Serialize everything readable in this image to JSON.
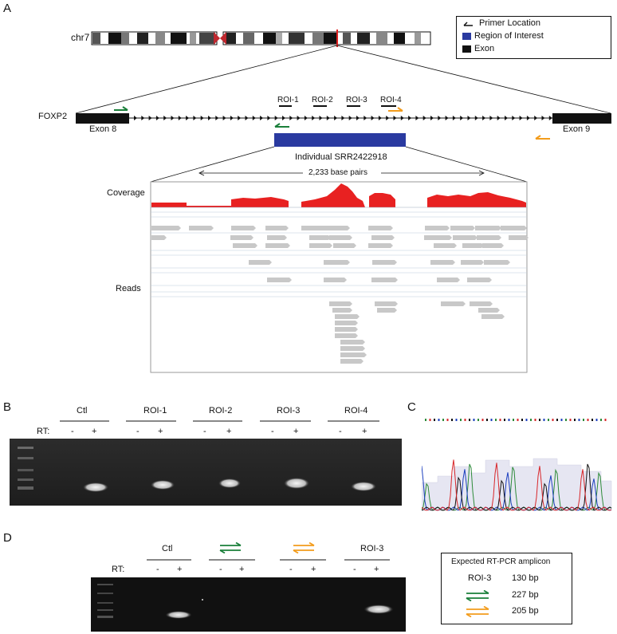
{
  "panels": {
    "a": "A",
    "b": "B",
    "c": "C",
    "d": "D"
  },
  "panel_a": {
    "chromosome": "chr7",
    "gene": "FOXP2",
    "exon_left": "Exon 8",
    "exon_right": "Exon 9",
    "rois": [
      "ROI-1",
      "ROI-2",
      "ROI-3",
      "ROI-4"
    ],
    "individual": "Individual SRR2422918",
    "span": "2,233 base pairs",
    "coverage_label": "Coverage",
    "reads_label": "Reads",
    "legend": {
      "primer": "Primer Location",
      "region": "Region of Interest",
      "exon": "Exon"
    },
    "colors": {
      "region": "#2a3aa0",
      "coverage": "#e82121",
      "primer_green": "#1a7f3a",
      "primer_orange": "#f39c1c",
      "reads": "#c8c8c8",
      "centromere": "#c0282f"
    }
  },
  "panel_b": {
    "lanes": [
      "Ctl",
      "ROI-1",
      "ROI-2",
      "ROI-3",
      "ROI-4"
    ],
    "rt_label": "RT:",
    "minus": "-",
    "plus": "+"
  },
  "panel_d": {
    "lanes": [
      "Ctl",
      "",
      "",
      "ROI-3"
    ],
    "rt_label": "RT:",
    "minus": "-",
    "plus": "+",
    "legend_title": "Expected RT-PCR amplicon",
    "legend_rows": [
      {
        "label": "ROI-3",
        "size": "130 bp"
      },
      {
        "label": "",
        "size": "227 bp",
        "icon": "green-primer-pair-icon"
      },
      {
        "label": "",
        "size": "205 bp",
        "icon": "orange-primer-pair-icon"
      }
    ]
  }
}
